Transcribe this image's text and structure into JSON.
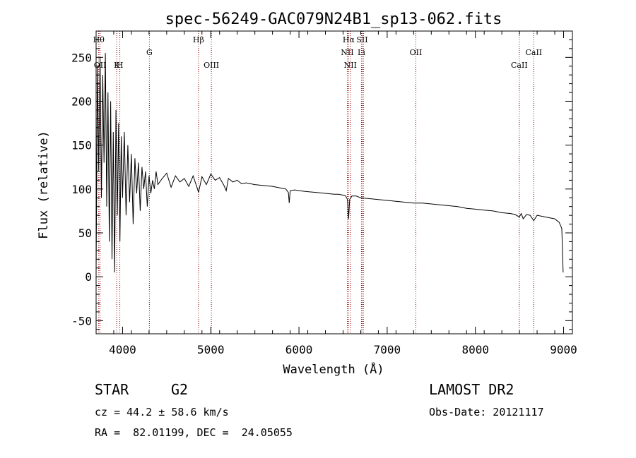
{
  "chart_data": {
    "type": "line",
    "title": "spec-56249-GAC079N24B1_sp13-062.fits",
    "xlabel": "Wavelength (Å)",
    "ylabel": "Flux (relative)",
    "xlim": [
      3700,
      9100
    ],
    "ylim": [
      -65,
      280
    ],
    "xticks": [
      4000,
      5000,
      6000,
      7000,
      8000,
      9000
    ],
    "yticks": [
      -50,
      0,
      50,
      100,
      150,
      200,
      250
    ],
    "grid": false,
    "series": [
      {
        "x": [
          3700,
          3715,
          3730,
          3745,
          3760,
          3775,
          3790,
          3805,
          3820,
          3835,
          3850,
          3865,
          3880,
          3895,
          3910,
          3925,
          3940,
          3955,
          3970,
          3985,
          4000,
          4020,
          4040,
          4060,
          4080,
          4100,
          4120,
          4140,
          4160,
          4180,
          4200,
          4220,
          4240,
          4260,
          4280,
          4300,
          4320,
          4340,
          4360,
          4380,
          4400,
          4450,
          4500,
          4550,
          4600,
          4650,
          4700,
          4750,
          4800,
          4850,
          4861,
          4900,
          4950,
          5000,
          5050,
          5100,
          5150,
          5175,
          5200,
          5250,
          5300,
          5350,
          5400,
          5500,
          5600,
          5700,
          5800,
          5850,
          5880,
          5890,
          5900,
          5950,
          6000,
          6100,
          6200,
          6300,
          6400,
          6450,
          6500,
          6530,
          6550,
          6563,
          6575,
          6600,
          6650,
          6700,
          6800,
          6900,
          7000,
          7100,
          7200,
          7300,
          7400,
          7500,
          7600,
          7700,
          7800,
          7900,
          8000,
          8100,
          8200,
          8300,
          8400,
          8450,
          8498,
          8520,
          8542,
          8580,
          8620,
          8662,
          8700,
          8800,
          8900,
          8950,
          8980,
          8995
        ],
        "values": [
          5,
          240,
          120,
          250,
          90,
          230,
          130,
          255,
          80,
          210,
          40,
          200,
          20,
          165,
          5,
          190,
          70,
          175,
          40,
          160,
          90,
          165,
          70,
          150,
          85,
          140,
          60,
          135,
          95,
          130,
          75,
          125,
          100,
          120,
          80,
          115,
          95,
          110,
          100,
          120,
          105,
          112,
          118,
          102,
          115,
          108,
          112,
          103,
          115,
          100,
          96,
          114,
          105,
          117,
          110,
          113,
          104,
          98,
          112,
          108,
          110,
          106,
          107,
          105,
          104,
          103,
          101,
          100,
          96,
          84,
          98,
          99,
          98,
          97,
          96,
          95,
          94,
          94,
          93,
          92,
          88,
          66,
          88,
          92,
          92,
          90,
          89,
          88,
          87,
          86,
          85,
          84,
          84,
          83,
          82,
          81,
          80,
          78,
          77,
          76,
          75,
          73,
          72,
          71,
          68,
          72,
          66,
          71,
          70,
          64,
          70,
          68,
          66,
          62,
          55,
          5
        ]
      }
    ],
    "lines": [
      {
        "x": 3730,
        "label": "Hθ",
        "level": 1
      },
      {
        "x": 3745,
        "label": "OII",
        "level": 3
      },
      {
        "x": 3934,
        "label": "K",
        "level": 3
      },
      {
        "x": 3969,
        "label": "H",
        "level": 3
      },
      {
        "x": 4304,
        "label": "G",
        "level": 2
      },
      {
        "x": 4861,
        "label": "Hβ",
        "level": 1
      },
      {
        "x": 5007,
        "label": "OIII",
        "level": 3
      },
      {
        "x": 6548,
        "label": "NII",
        "level": 2
      },
      {
        "x": 6563,
        "label": "Hα",
        "level": 1
      },
      {
        "x": 6583,
        "label": "NII",
        "level": 3
      },
      {
        "x": 6708,
        "label": "Li",
        "level": 2
      },
      {
        "x": 6716,
        "label": "SII",
        "level": 1
      },
      {
        "x": 6731,
        "label": "",
        "level": 1
      },
      {
        "x": 7325,
        "label": "OII",
        "level": 2
      },
      {
        "x": 8498,
        "label": "CaII",
        "level": 3
      },
      {
        "x": 8662,
        "label": "CaII",
        "level": 2
      }
    ]
  },
  "info": {
    "object_class": "STAR",
    "subclass": "G2",
    "survey": "LAMOST DR2",
    "cz": "cz = 44.2 ± 58.6 km/s",
    "obs_date": "Obs-Date: 20121117",
    "coords": "RA =  82.01199, DEC =  24.05055"
  },
  "colors": {
    "spectrum": "#000000",
    "line_marker": "#8b0000",
    "axes": "#000000",
    "background": "#ffffff"
  }
}
